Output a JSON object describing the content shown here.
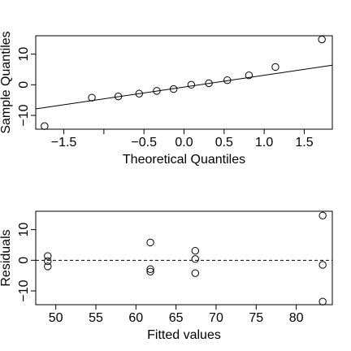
{
  "chart_data": [
    {
      "type": "scatter",
      "title": "",
      "xlabel": "Theoretical Quantiles",
      "ylabel": "Sample Quantiles",
      "xlim": [
        -1.85,
        1.85
      ],
      "ylim": [
        -14.5,
        16
      ],
      "xticks": [
        -1.5,
        -1.0,
        -0.5,
        0.0,
        0.5,
        1.0,
        1.5
      ],
      "xtick_labels": [
        "−1.5",
        "",
        "−0.5",
        "0.0",
        "0.5",
        "1.0",
        "1.5"
      ],
      "yticks": [
        -10,
        0,
        10
      ],
      "ytick_labels": [
        "−10",
        "0",
        "10"
      ],
      "points": [
        {
          "x": -1.74,
          "y": -13.5
        },
        {
          "x": -1.15,
          "y": -4.2
        },
        {
          "x": -0.82,
          "y": -3.8
        },
        {
          "x": -0.56,
          "y": -2.9
        },
        {
          "x": -0.34,
          "y": -2.0
        },
        {
          "x": -0.13,
          "y": -1.4
        },
        {
          "x": 0.09,
          "y": 0.0
        },
        {
          "x": 0.31,
          "y": 0.5
        },
        {
          "x": 0.54,
          "y": 1.5
        },
        {
          "x": 0.81,
          "y": 3.1
        },
        {
          "x": 1.14,
          "y": 5.8
        },
        {
          "x": 1.72,
          "y": 14.8
        }
      ],
      "reference_line": {
        "intercept": -0.75,
        "slope": 3.85
      },
      "grid": false
    },
    {
      "type": "scatter",
      "title": "",
      "xlabel": "Fitted values",
      "ylabel": "Residuals",
      "xlim": [
        47.5,
        84.5
      ],
      "ylim": [
        -14.5,
        16
      ],
      "xticks": [
        50,
        55,
        60,
        65,
        70,
        75,
        80
      ],
      "xtick_labels": [
        "50",
        "55",
        "60",
        "65",
        "70",
        "75",
        "80"
      ],
      "yticks": [
        -10,
        0,
        10
      ],
      "ytick_labels": [
        "−10",
        "0",
        "10"
      ],
      "points": [
        {
          "x": 49.0,
          "y": 1.4
        },
        {
          "x": 49.0,
          "y": -0.3
        },
        {
          "x": 49.0,
          "y": -2.0
        },
        {
          "x": 61.8,
          "y": 5.8
        },
        {
          "x": 61.8,
          "y": -2.9
        },
        {
          "x": 61.8,
          "y": -3.7
        },
        {
          "x": 67.4,
          "y": 3.1
        },
        {
          "x": 67.4,
          "y": 0.4
        },
        {
          "x": 67.4,
          "y": -4.2
        },
        {
          "x": 83.3,
          "y": 14.6
        },
        {
          "x": 83.3,
          "y": -1.5
        },
        {
          "x": 83.3,
          "y": -13.5
        }
      ],
      "hline": {
        "y": 0,
        "style": "dashed"
      },
      "grid": false
    }
  ]
}
